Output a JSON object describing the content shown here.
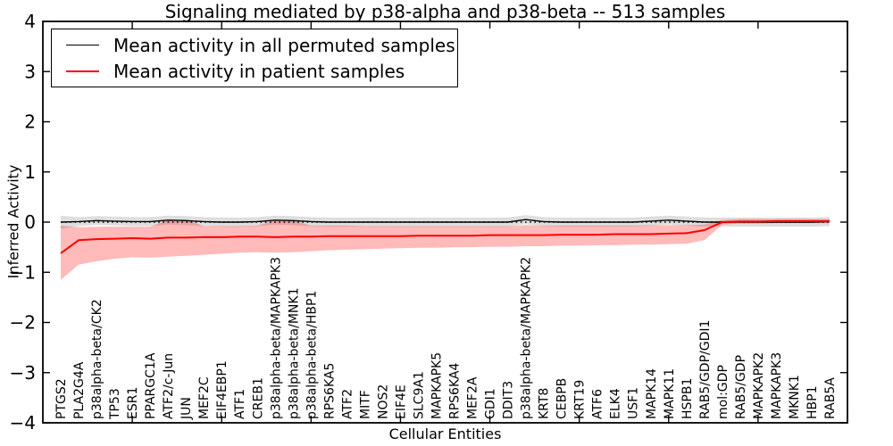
{
  "title": "Signaling mediated by p38-alpha and p38-beta -- 513 samples",
  "legend": {
    "items": [
      {
        "label": "Mean activity in all permuted samples",
        "color": "#000000"
      },
      {
        "label": "Mean activity in patient samples",
        "color": "#ff0000"
      }
    ]
  },
  "axes": {
    "ylabel": "Inferred Activity",
    "xlabel": "Cellular Entities",
    "ytick_labels": [
      "−4",
      "−3",
      "−2",
      "−1",
      "0",
      "1",
      "2",
      "3",
      "4"
    ]
  },
  "chart_data": {
    "type": "line",
    "title": "Signaling mediated by p38-alpha and p38-beta -- 513 samples",
    "xlabel": "Cellular Entities",
    "ylabel": "Inferred Activity",
    "ylim": [
      -4,
      4
    ],
    "yticks": [
      -4,
      -3,
      -2,
      -1,
      0,
      1,
      2,
      3,
      4
    ],
    "grid": false,
    "legend_position": "upper left",
    "zero_line": {
      "y": 0,
      "style": "dotted",
      "color": "#000000"
    },
    "categories": [
      "PTGS2",
      "PLA2G4A",
      "p38alpha-beta/CK2",
      "TP53",
      "ESR1",
      "PPARGC1A",
      "ATF2/c-Jun",
      "JUN",
      "MEF2C",
      "EIF4EBP1",
      "ATF1",
      "CREB1",
      "p38alpha-beta/MAPKAPK3",
      "p38alpha-beta/MNK1",
      "p38alpha-beta/HBP1",
      "RPS6KA5",
      "ATF2",
      "MITF",
      "NOS2",
      "EIF4E",
      "SLC9A1",
      "MAPKAPK5",
      "RPS6KA4",
      "MEF2A",
      "GDI1",
      "DDIT3",
      "p38alpha-beta/MAPKAPK2",
      "KRT8",
      "CEBPB",
      "KRT19",
      "ATF6",
      "ELK4",
      "USF1",
      "MAPK14",
      "MAPK11",
      "HSPB1",
      "RAB5/GDP/GDI1",
      "mol:GDP",
      "RAB5/GDP",
      "MAPKAPK2",
      "MAPKAPK3",
      "MKNK1",
      "HBP1",
      "RAB5A"
    ],
    "series": [
      {
        "name": "Mean activity in all permuted samples",
        "color": "#000000",
        "band_color": "#000000",
        "band_alpha": 0.13,
        "values": [
          0.0,
          0.01,
          0.03,
          0.02,
          0.01,
          0.01,
          0.04,
          0.03,
          0.01,
          0.0,
          0.0,
          0.01,
          0.04,
          0.03,
          0.01,
          0.0,
          0.0,
          0.0,
          0.0,
          0.0,
          0.0,
          0.0,
          0.0,
          0.0,
          0.0,
          0.0,
          0.05,
          0.01,
          0.0,
          0.0,
          0.0,
          0.0,
          0.0,
          0.02,
          0.04,
          0.02,
          0.0,
          0.0,
          0.0,
          0.0,
          0.0,
          0.0,
          0.0,
          0.01
        ],
        "band_upper": [
          0.13,
          0.1,
          0.12,
          0.11,
          0.1,
          0.1,
          0.13,
          0.12,
          0.1,
          0.09,
          0.09,
          0.1,
          0.13,
          0.12,
          0.1,
          0.09,
          0.09,
          0.09,
          0.09,
          0.09,
          0.09,
          0.09,
          0.09,
          0.09,
          0.09,
          0.09,
          0.14,
          0.1,
          0.09,
          0.09,
          0.09,
          0.09,
          0.09,
          0.11,
          0.13,
          0.11,
          0.09,
          0.09,
          0.09,
          0.09,
          0.09,
          0.09,
          0.09,
          0.1
        ],
        "band_lower": [
          -0.13,
          -0.08,
          -0.06,
          -0.07,
          -0.08,
          -0.08,
          -0.05,
          -0.06,
          -0.08,
          -0.09,
          -0.09,
          -0.08,
          -0.05,
          -0.06,
          -0.08,
          -0.09,
          -0.09,
          -0.09,
          -0.09,
          -0.09,
          -0.09,
          -0.09,
          -0.09,
          -0.09,
          -0.09,
          -0.09,
          -0.04,
          -0.08,
          -0.09,
          -0.09,
          -0.09,
          -0.09,
          -0.09,
          -0.07,
          -0.05,
          -0.07,
          -0.09,
          -0.09,
          -0.09,
          -0.09,
          -0.09,
          -0.09,
          -0.09,
          -0.08
        ]
      },
      {
        "name": "Mean activity in patient samples",
        "color": "#ff0000",
        "band_color": "#ff0000",
        "band_alpha": 0.27,
        "values": [
          -0.62,
          -0.36,
          -0.34,
          -0.33,
          -0.32,
          -0.33,
          -0.31,
          -0.31,
          -0.3,
          -0.3,
          -0.29,
          -0.29,
          -0.3,
          -0.29,
          -0.29,
          -0.28,
          -0.28,
          -0.28,
          -0.28,
          -0.28,
          -0.27,
          -0.27,
          -0.27,
          -0.27,
          -0.26,
          -0.26,
          -0.26,
          -0.26,
          -0.25,
          -0.25,
          -0.25,
          -0.24,
          -0.24,
          -0.24,
          -0.23,
          -0.22,
          -0.16,
          0.0,
          0.01,
          0.01,
          0.02,
          0.02,
          0.02,
          0.02
        ],
        "band_upper": [
          -0.07,
          -0.1,
          -0.09,
          -0.09,
          -0.09,
          -0.09,
          0.05,
          0.05,
          -0.08,
          -0.08,
          -0.08,
          -0.07,
          0.04,
          0.03,
          -0.07,
          -0.07,
          -0.07,
          -0.08,
          -0.08,
          -0.08,
          -0.08,
          -0.08,
          -0.08,
          -0.08,
          -0.08,
          -0.08,
          -0.06,
          -0.07,
          -0.07,
          -0.07,
          -0.07,
          -0.07,
          -0.07,
          -0.06,
          -0.06,
          -0.06,
          -0.05,
          0.04,
          0.06,
          0.06,
          0.06,
          0.06,
          0.06,
          0.06
        ],
        "band_lower": [
          -1.15,
          -0.85,
          -0.78,
          -0.73,
          -0.7,
          -0.71,
          -0.69,
          -0.67,
          -0.65,
          -0.63,
          -0.61,
          -0.6,
          -0.61,
          -0.6,
          -0.58,
          -0.56,
          -0.55,
          -0.54,
          -0.53,
          -0.52,
          -0.51,
          -0.51,
          -0.5,
          -0.5,
          -0.49,
          -0.49,
          -0.48,
          -0.48,
          -0.47,
          -0.47,
          -0.46,
          -0.46,
          -0.45,
          -0.45,
          -0.44,
          -0.43,
          -0.36,
          -0.05,
          -0.03,
          -0.03,
          -0.02,
          -0.02,
          -0.02,
          -0.02
        ]
      }
    ]
  }
}
